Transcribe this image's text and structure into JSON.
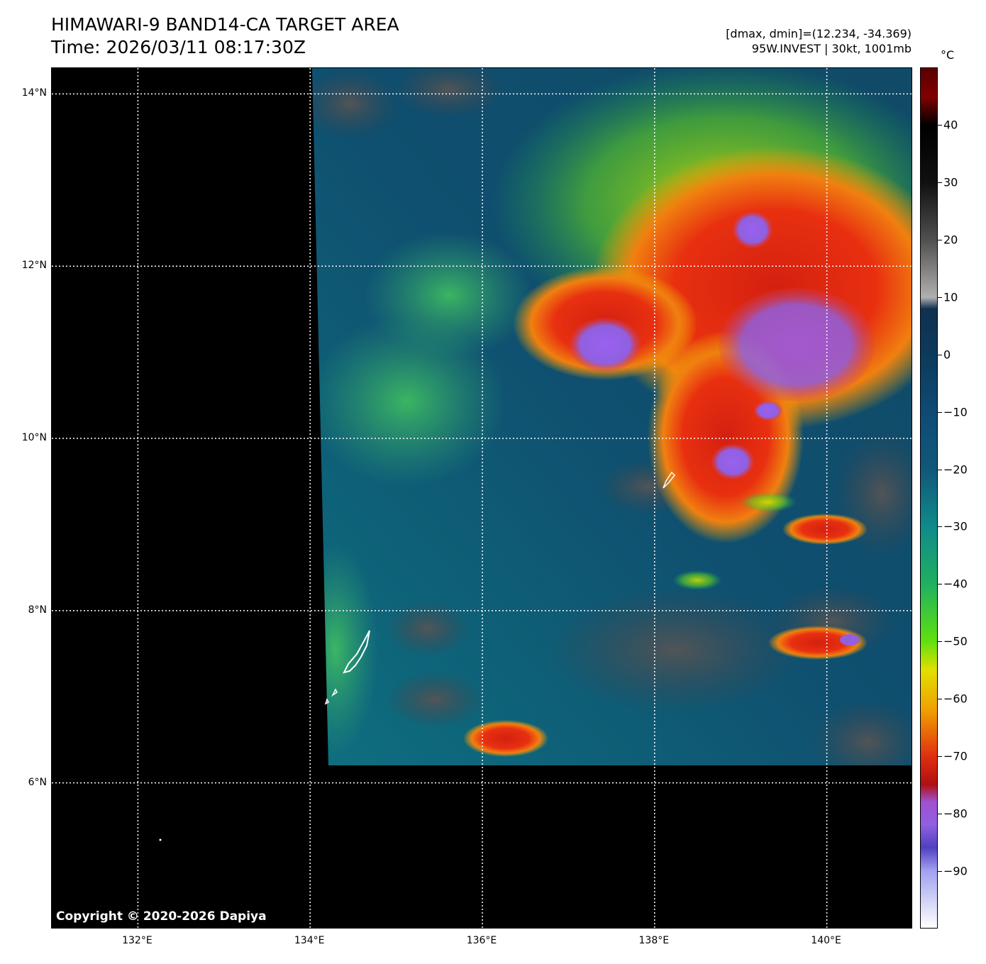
{
  "title": {
    "line1": "HIMAWARI-9 BAND14-CA TARGET AREA",
    "line2": "Time: 2026/03/11 08:17:30Z"
  },
  "info": {
    "line1": "[dmax, dmin]=(12.234, -34.369)",
    "line2": "95W.INVEST | 30kt, 1001mb"
  },
  "copyright": "Copyright © 2020-2026 Dapiya",
  "map": {
    "lon_range": [
      131.0,
      141.0
    ],
    "lat_range": [
      4.3,
      14.3
    ],
    "lat_ticks": [
      {
        "value": 14,
        "label": "14°N"
      },
      {
        "value": 12,
        "label": "12°N"
      },
      {
        "value": 10,
        "label": "10°N"
      },
      {
        "value": 8,
        "label": "8°N"
      },
      {
        "value": 6,
        "label": "6°N"
      }
    ],
    "lon_ticks": [
      {
        "value": 132,
        "label": "132°E"
      },
      {
        "value": 134,
        "label": "134°E"
      },
      {
        "value": 136,
        "label": "136°E"
      },
      {
        "value": 138,
        "label": "138°E"
      },
      {
        "value": 140,
        "label": "140°E"
      }
    ],
    "grid": true
  },
  "colorbar": {
    "unit": "°C",
    "range": [
      -100,
      50
    ],
    "ticks": [
      {
        "value": 40,
        "label": "40"
      },
      {
        "value": 30,
        "label": "30"
      },
      {
        "value": 20,
        "label": "20"
      },
      {
        "value": 10,
        "label": "10"
      },
      {
        "value": 0,
        "label": "0"
      },
      {
        "value": -10,
        "label": "−10"
      },
      {
        "value": -20,
        "label": "−20"
      },
      {
        "value": -30,
        "label": "−30"
      },
      {
        "value": -40,
        "label": "−40"
      },
      {
        "value": -50,
        "label": "−50"
      },
      {
        "value": -60,
        "label": "−60"
      },
      {
        "value": -70,
        "label": "−70"
      },
      {
        "value": -80,
        "label": "−80"
      },
      {
        "value": -90,
        "label": "−90"
      }
    ]
  }
}
